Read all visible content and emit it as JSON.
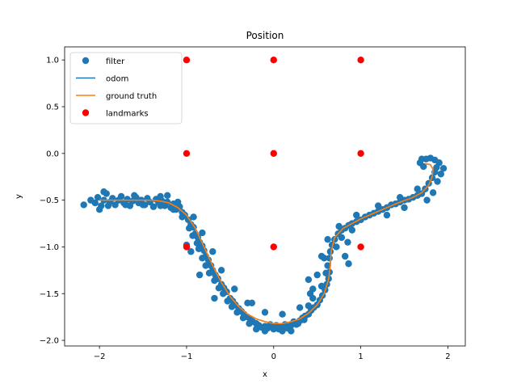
{
  "chart_data": {
    "type": "scatter",
    "title": "Position",
    "xlabel": "x",
    "ylabel": "y",
    "xlim": [
      -2.4,
      2.2
    ],
    "ylim": [
      -2.06,
      1.14
    ],
    "x_ticks": [
      -2,
      -1,
      0,
      1,
      2
    ],
    "x_tick_labels": [
      "−2",
      "−1",
      "0",
      "1",
      "2"
    ],
    "y_ticks": [
      -2.0,
      -1.5,
      -1.0,
      -0.5,
      0.0,
      0.5,
      1.0
    ],
    "y_tick_labels": [
      "−2.0",
      "−1.5",
      "−1.0",
      "−0.5",
      "0.0",
      "0.5",
      "1.0"
    ],
    "grid": false,
    "legend_position": "top-left",
    "legend": [
      {
        "label": "filter",
        "kind": "marker",
        "color": "#1f77b4"
      },
      {
        "label": "odom",
        "kind": "line",
        "color": "#1f77b4"
      },
      {
        "label": "ground truth",
        "kind": "line",
        "color": "#ff7f0e"
      },
      {
        "label": "landmarks",
        "kind": "marker",
        "color": "#ff0000"
      }
    ],
    "landmarks": {
      "name": "landmarks",
      "color": "#ff0000",
      "points": [
        [
          -1,
          1
        ],
        [
          0,
          1
        ],
        [
          1,
          1
        ],
        [
          -1,
          0
        ],
        [
          0,
          0
        ],
        [
          1,
          0
        ],
        [
          -1,
          -1
        ],
        [
          0,
          -1
        ],
        [
          1,
          -1
        ]
      ]
    },
    "ground_truth": {
      "name": "ground truth",
      "color": "#ff7f0e",
      "points": [
        [
          -2.0,
          -0.5
        ],
        [
          -1.8,
          -0.5
        ],
        [
          -1.6,
          -0.5
        ],
        [
          -1.4,
          -0.5
        ],
        [
          -1.3,
          -0.51
        ],
        [
          -1.2,
          -0.53
        ],
        [
          -1.1,
          -0.58
        ],
        [
          -1.0,
          -0.66
        ],
        [
          -0.9,
          -0.8
        ],
        [
          -0.8,
          -1.0
        ],
        [
          -0.7,
          -1.2
        ],
        [
          -0.6,
          -1.38
        ],
        [
          -0.5,
          -1.53
        ],
        [
          -0.4,
          -1.64
        ],
        [
          -0.3,
          -1.72
        ],
        [
          -0.2,
          -1.77
        ],
        [
          -0.1,
          -1.8
        ],
        [
          0.0,
          -1.82
        ],
        [
          0.1,
          -1.82
        ],
        [
          0.2,
          -1.8
        ],
        [
          0.3,
          -1.77
        ],
        [
          0.4,
          -1.71
        ],
        [
          0.5,
          -1.62
        ],
        [
          0.58,
          -1.5
        ],
        [
          0.63,
          -1.35
        ],
        [
          0.65,
          -1.2
        ],
        [
          0.66,
          -1.05
        ],
        [
          0.7,
          -0.9
        ],
        [
          0.8,
          -0.8
        ],
        [
          1.0,
          -0.7
        ],
        [
          1.2,
          -0.62
        ],
        [
          1.4,
          -0.54
        ],
        [
          1.6,
          -0.47
        ],
        [
          1.7,
          -0.42
        ],
        [
          1.78,
          -0.34
        ],
        [
          1.82,
          -0.25
        ],
        [
          1.83,
          -0.17
        ],
        [
          1.8,
          -0.12
        ],
        [
          1.74,
          -0.11
        ]
      ]
    },
    "odom": {
      "name": "odom",
      "color": "#1f77b4",
      "points": [
        [
          -2.0,
          -0.5
        ],
        [
          -1.8,
          -0.5
        ],
        [
          -1.6,
          -0.5
        ],
        [
          -1.4,
          -0.5
        ],
        [
          -1.3,
          -0.51
        ],
        [
          -1.2,
          -0.53
        ],
        [
          -1.1,
          -0.58
        ],
        [
          -1.0,
          -0.66
        ],
        [
          -0.9,
          -0.8
        ],
        [
          -0.8,
          -1.0
        ],
        [
          -0.7,
          -1.2
        ],
        [
          -0.6,
          -1.38
        ],
        [
          -0.5,
          -1.53
        ],
        [
          -0.4,
          -1.64
        ],
        [
          -0.3,
          -1.72
        ],
        [
          -0.2,
          -1.77
        ],
        [
          -0.1,
          -1.8
        ],
        [
          0.0,
          -1.82
        ],
        [
          0.1,
          -1.82
        ],
        [
          0.2,
          -1.8
        ],
        [
          0.3,
          -1.77
        ],
        [
          0.4,
          -1.71
        ],
        [
          0.5,
          -1.62
        ],
        [
          0.58,
          -1.5
        ],
        [
          0.63,
          -1.35
        ],
        [
          0.65,
          -1.2
        ],
        [
          0.66,
          -1.05
        ],
        [
          0.7,
          -0.9
        ],
        [
          0.8,
          -0.8
        ],
        [
          1.0,
          -0.7
        ],
        [
          1.2,
          -0.62
        ],
        [
          1.4,
          -0.54
        ],
        [
          1.6,
          -0.47
        ],
        [
          1.7,
          -0.42
        ],
        [
          1.78,
          -0.34
        ],
        [
          1.82,
          -0.25
        ],
        [
          1.83,
          -0.17
        ],
        [
          1.8,
          -0.12
        ],
        [
          1.74,
          -0.11
        ]
      ]
    },
    "filter": {
      "name": "filter",
      "color": "#1f77b4",
      "points": [
        [
          -2.18,
          -0.55
        ],
        [
          -2.1,
          -0.5
        ],
        [
          -2.05,
          -0.53
        ],
        [
          -2.02,
          -0.47
        ],
        [
          -1.98,
          -0.56
        ],
        [
          -1.95,
          -0.5
        ],
        [
          -1.92,
          -0.43
        ],
        [
          -1.88,
          -0.52
        ],
        [
          -1.85,
          -0.48
        ],
        [
          -1.82,
          -0.55
        ],
        [
          -1.78,
          -0.5
        ],
        [
          -1.75,
          -0.46
        ],
        [
          -1.72,
          -0.53
        ],
        [
          -1.68,
          -0.49
        ],
        [
          -1.65,
          -0.56
        ],
        [
          -1.62,
          -0.51
        ],
        [
          -1.58,
          -0.47
        ],
        [
          -1.55,
          -0.53
        ],
        [
          -1.52,
          -0.5
        ],
        [
          -1.48,
          -0.55
        ],
        [
          -1.45,
          -0.48
        ],
        [
          -1.42,
          -0.52
        ],
        [
          -1.38,
          -0.57
        ],
        [
          -1.35,
          -0.49
        ],
        [
          -1.32,
          -0.53
        ],
        [
          -1.28,
          -0.51
        ],
        [
          -1.25,
          -0.56
        ],
        [
          -1.22,
          -0.52
        ],
        [
          -1.18,
          -0.58
        ],
        [
          -1.15,
          -0.54
        ],
        [
          -1.12,
          -0.6
        ],
        [
          -1.08,
          -0.57
        ],
        [
          -1.05,
          -0.63
        ],
        [
          -1.02,
          -0.66
        ],
        [
          -0.98,
          -0.71
        ],
        [
          -0.95,
          -0.76
        ],
        [
          -0.92,
          -0.79
        ],
        [
          -0.9,
          -0.86
        ],
        [
          -0.87,
          -0.9
        ],
        [
          -0.85,
          -0.95
        ],
        [
          -0.82,
          -0.99
        ],
        [
          -0.8,
          -1.04
        ],
        [
          -1.0,
          -0.98
        ],
        [
          -0.95,
          -1.05
        ],
        [
          -0.78,
          -1.1
        ],
        [
          -0.75,
          -1.14
        ],
        [
          -0.72,
          -1.2
        ],
        [
          -0.7,
          -1.25
        ],
        [
          -0.67,
          -1.3
        ],
        [
          -0.64,
          -1.34
        ],
        [
          -0.6,
          -1.4
        ],
        [
          -0.57,
          -1.44
        ],
        [
          -0.54,
          -1.48
        ],
        [
          -0.5,
          -1.55
        ],
        [
          -0.47,
          -1.58
        ],
        [
          -0.44,
          -1.62
        ],
        [
          -0.4,
          -1.66
        ],
        [
          -0.37,
          -1.69
        ],
        [
          -0.34,
          -1.72
        ],
        [
          -0.3,
          -1.75
        ],
        [
          -0.27,
          -1.77
        ],
        [
          -0.24,
          -1.8
        ],
        [
          -0.2,
          -1.82
        ],
        [
          -0.17,
          -1.84
        ],
        [
          -0.14,
          -1.86
        ],
        [
          -0.1,
          -1.85
        ],
        [
          -0.07,
          -1.87
        ],
        [
          -0.04,
          -1.83
        ],
        [
          0.0,
          -1.86
        ],
        [
          0.03,
          -1.84
        ],
        [
          0.06,
          -1.88
        ],
        [
          0.1,
          -1.85
        ],
        [
          0.13,
          -1.83
        ],
        [
          0.16,
          -1.87
        ],
        [
          0.2,
          -1.84
        ],
        [
          0.23,
          -1.8
        ],
        [
          0.26,
          -1.83
        ],
        [
          0.3,
          -1.79
        ],
        [
          0.33,
          -1.76
        ],
        [
          0.36,
          -1.74
        ],
        [
          0.4,
          -1.72
        ],
        [
          0.43,
          -1.68
        ],
        [
          0.46,
          -1.65
        ],
        [
          0.5,
          -1.62
        ],
        [
          0.53,
          -1.57
        ],
        [
          0.56,
          -1.52
        ],
        [
          0.59,
          -1.46
        ],
        [
          0.61,
          -1.4
        ],
        [
          0.63,
          -1.34
        ],
        [
          0.64,
          -1.27
        ],
        [
          0.62,
          -1.2
        ],
        [
          0.64,
          -1.12
        ],
        [
          0.65,
          -1.05
        ],
        [
          0.67,
          -0.98
        ],
        [
          0.7,
          -0.92
        ],
        [
          0.74,
          -0.86
        ],
        [
          0.78,
          -0.82
        ],
        [
          0.82,
          -0.8
        ],
        [
          0.86,
          -0.77
        ],
        [
          0.9,
          -0.75
        ],
        [
          0.95,
          -0.73
        ],
        [
          1.0,
          -0.71
        ],
        [
          1.05,
          -0.68
        ],
        [
          1.1,
          -0.66
        ],
        [
          1.15,
          -0.64
        ],
        [
          1.2,
          -0.62
        ],
        [
          1.25,
          -0.6
        ],
        [
          1.3,
          -0.58
        ],
        [
          1.35,
          -0.55
        ],
        [
          1.4,
          -0.54
        ],
        [
          1.45,
          -0.52
        ],
        [
          1.5,
          -0.5
        ],
        [
          1.55,
          -0.49
        ],
        [
          1.6,
          -0.47
        ],
        [
          1.65,
          -0.45
        ],
        [
          1.7,
          -0.43
        ],
        [
          1.74,
          -0.38
        ],
        [
          1.78,
          -0.32
        ],
        [
          1.82,
          -0.26
        ],
        [
          1.85,
          -0.2
        ],
        [
          1.87,
          -0.15
        ],
        [
          1.9,
          -0.1
        ],
        [
          1.85,
          -0.07
        ],
        [
          1.8,
          -0.05
        ],
        [
          1.75,
          -0.06
        ],
        [
          1.7,
          -0.06
        ],
        [
          1.68,
          -0.1
        ],
        [
          1.72,
          -0.14
        ],
        [
          1.95,
          -0.16
        ],
        [
          1.92,
          -0.22
        ],
        [
          1.88,
          -0.3
        ],
        [
          1.83,
          -0.42
        ],
        [
          1.76,
          -0.5
        ],
        [
          1.5,
          -0.58
        ],
        [
          1.3,
          -0.66
        ],
        [
          0.9,
          -0.82
        ],
        [
          0.85,
          -0.95
        ],
        [
          0.78,
          -0.9
        ],
        [
          0.72,
          -1.0
        ],
        [
          0.58,
          -1.12
        ],
        [
          0.6,
          -1.28
        ],
        [
          0.55,
          -1.42
        ],
        [
          0.45,
          -1.55
        ],
        [
          0.4,
          -1.63
        ],
        [
          0.35,
          -1.78
        ],
        [
          0.28,
          -1.82
        ],
        [
          0.2,
          -1.9
        ],
        [
          0.1,
          -1.9
        ],
        [
          0.0,
          -1.88
        ],
        [
          -0.1,
          -1.9
        ],
        [
          -0.2,
          -1.88
        ],
        [
          -0.28,
          -1.82
        ],
        [
          -0.35,
          -1.76
        ],
        [
          -0.42,
          -1.7
        ],
        [
          -0.48,
          -1.64
        ],
        [
          -0.53,
          -1.58
        ],
        [
          -0.58,
          -1.5
        ],
        [
          -0.63,
          -1.44
        ],
        [
          -0.68,
          -1.36
        ],
        [
          -0.74,
          -1.28
        ],
        [
          -0.78,
          -1.2
        ],
        [
          -0.82,
          -1.12
        ],
        [
          -0.86,
          -1.02
        ],
        [
          -0.88,
          -0.96
        ],
        [
          -0.93,
          -0.88
        ],
        [
          -0.97,
          -0.8
        ],
        [
          -1.05,
          -0.68
        ],
        [
          -1.15,
          -0.6
        ],
        [
          -1.3,
          -0.56
        ],
        [
          -1.5,
          -0.55
        ],
        [
          -1.7,
          -0.55
        ],
        [
          -1.9,
          -0.56
        ],
        [
          -2.0,
          -0.6
        ],
        [
          -1.95,
          -0.41
        ],
        [
          -1.6,
          -0.45
        ],
        [
          -1.3,
          -0.46
        ],
        [
          -1.1,
          -0.52
        ],
        [
          -0.92,
          -0.68
        ],
        [
          -0.82,
          -0.85
        ],
        [
          -0.7,
          -1.05
        ],
        [
          -0.6,
          -1.25
        ],
        [
          -0.45,
          -1.45
        ],
        [
          -0.3,
          -1.6
        ],
        [
          -0.1,
          -1.7
        ],
        [
          0.1,
          -1.72
        ],
        [
          0.3,
          -1.65
        ],
        [
          0.45,
          -1.45
        ],
        [
          0.5,
          -1.3
        ],
        [
          0.55,
          -1.1
        ],
        [
          0.62,
          -0.92
        ],
        [
          0.75,
          -0.78
        ],
        [
          0.95,
          -0.66
        ],
        [
          1.2,
          -0.56
        ],
        [
          1.45,
          -0.47
        ],
        [
          1.65,
          -0.38
        ],
        [
          0.4,
          -1.35
        ],
        [
          0.42,
          -1.5
        ],
        [
          0.86,
          -1.18
        ],
        [
          0.82,
          -1.1
        ],
        [
          -0.68,
          -1.55
        ],
        [
          -0.25,
          -1.6
        ],
        [
          -0.85,
          -1.3
        ],
        [
          -1.22,
          -0.45
        ]
      ]
    }
  }
}
